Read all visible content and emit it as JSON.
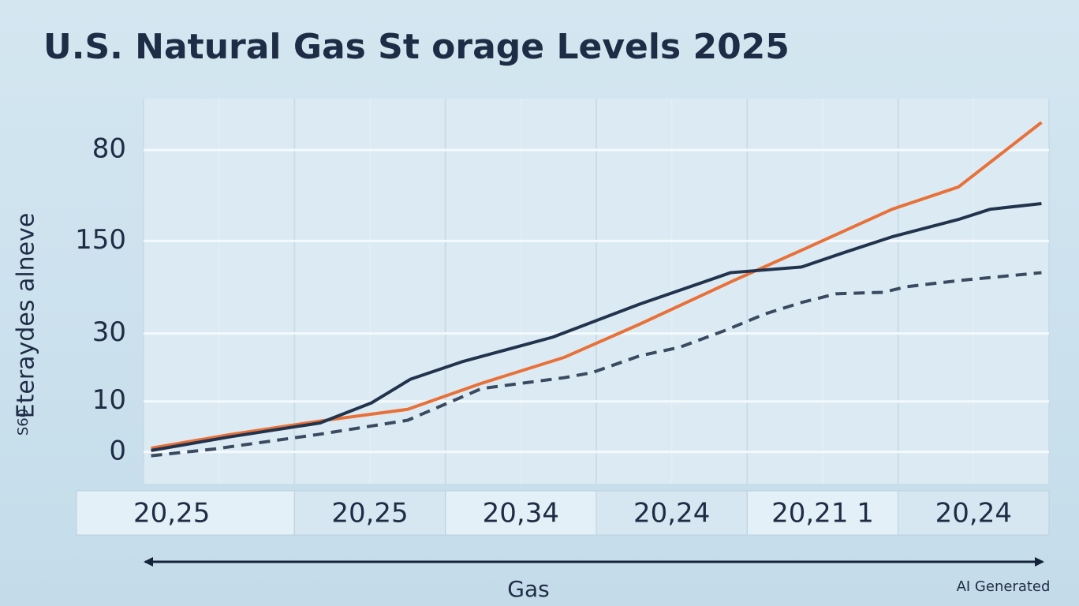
{
  "chart_data": {
    "type": "line",
    "title": "U.S. Natural Gas St orage Levels 2025",
    "y_label": "Eteraydes alneve",
    "y_label_prefix": "S60",
    "x_label": "Gas",
    "watermark": "AI Generated",
    "categories": [
      "20,25",
      "20,25",
      "20,34",
      "20,24",
      "20,21 1",
      "20,24"
    ],
    "xlim": [
      0,
      6
    ],
    "ylim": [
      -8.4,
      93.6
    ],
    "yticks": [
      0,
      {
        "value": 13.4,
        "label": "10"
      },
      {
        "value": 31.4,
        "label": "30"
      },
      {
        "value": 55.9,
        "label": "150"
      },
      80
    ],
    "grid": true,
    "series": [
      {
        "color": "#e8713a",
        "dashed": false,
        "x": [
          0.05,
          0.57,
          1.17,
          1.75,
          2.24,
          2.79,
          3.29,
          3.91,
          4.38,
          4.96,
          5.4,
          5.95
        ],
        "values": [
          1.0,
          4.6,
          8.2,
          11.3,
          18.2,
          25.1,
          33.9,
          45.4,
          53.8,
          64.3,
          70.2,
          87.3
        ]
      },
      {
        "color": "#22334d",
        "dashed": false,
        "x": [
          0.05,
          0.57,
          1.17,
          1.51,
          1.77,
          2.11,
          2.71,
          3.29,
          3.89,
          4.36,
          4.64,
          4.96,
          5.4,
          5.61,
          5.95
        ],
        "values": [
          0.4,
          4.0,
          7.7,
          13.0,
          19.3,
          23.9,
          30.4,
          39.2,
          47.5,
          49.0,
          52.8,
          57.0,
          61.6,
          64.3,
          65.8
        ]
      },
      {
        "color": "#3a4a60",
        "dashed": true,
        "x": [
          0.05,
          0.47,
          1.15,
          1.75,
          2.24,
          2.79,
          2.97,
          3.29,
          3.55,
          3.86,
          4.12,
          4.36,
          4.59,
          4.9,
          5.06,
          5.4,
          5.95
        ],
        "values": [
          -1.0,
          0.8,
          4.6,
          8.4,
          16.8,
          19.7,
          21.0,
          25.5,
          27.7,
          32.3,
          36.6,
          39.6,
          41.9,
          42.3,
          43.8,
          45.4,
          47.5
        ]
      }
    ]
  }
}
